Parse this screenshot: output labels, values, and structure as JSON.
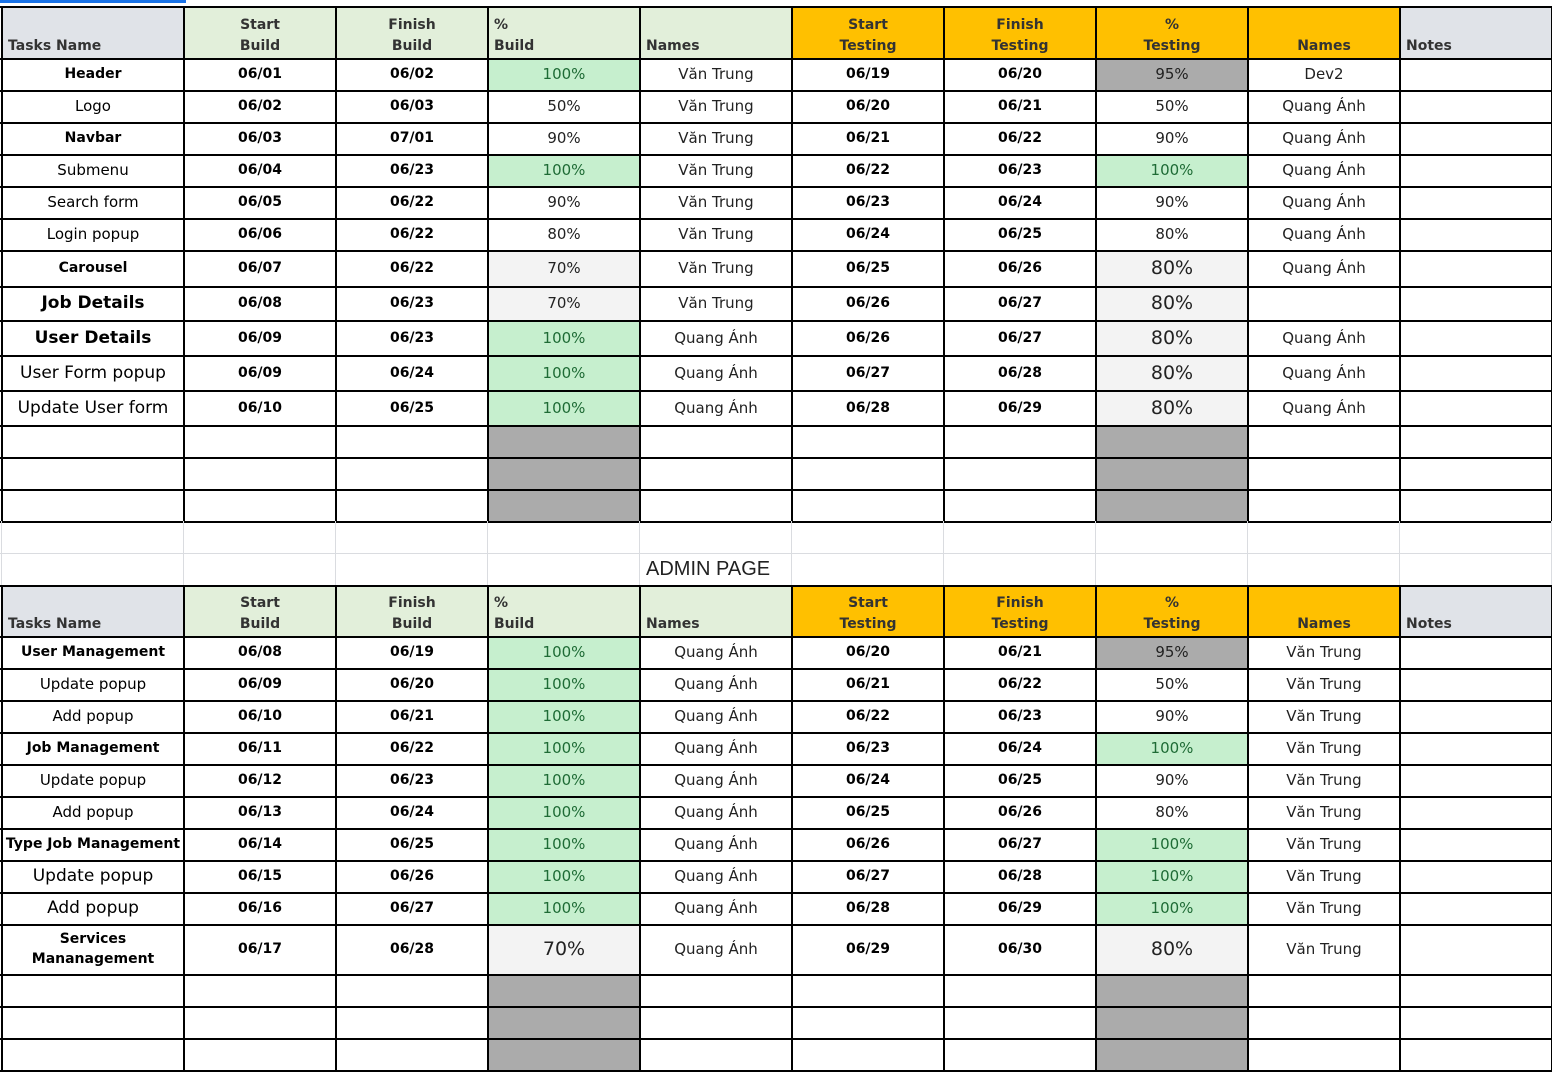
{
  "headers": {
    "task": "Tasks Name",
    "start_build": [
      "Start",
      "Build"
    ],
    "finish_build": [
      "Finish",
      "Build"
    ],
    "pct_build": [
      "%",
      "Build"
    ],
    "names_build": "Names",
    "start_testing": [
      "Start",
      "Testing"
    ],
    "finish_testing": [
      "Finish",
      "Testing"
    ],
    "pct_testing": [
      "%",
      "Testing"
    ],
    "names_testing": "Names",
    "notes": "Notes"
  },
  "colors": {
    "header_green": "#e2efda",
    "header_yellow": "#ffc000",
    "header_grey": "#e0e3e8",
    "pct_done_green": "#c6efce",
    "pct_dark_grey": "#ababab",
    "pct_light_grey": "#f3f3f3"
  },
  "user_section": {
    "rows": [
      {
        "task": "Header",
        "style": "bold",
        "start_build": "06/01",
        "finish_build": "06/02",
        "pct_build": "100%",
        "pct_build_style": "green",
        "names_build": "Văn Trung",
        "start_testing": "06/19",
        "finish_testing": "06/20",
        "pct_testing": "95%",
        "pct_testing_style": "darkgrey",
        "names_testing": "Dev2",
        "notes": ""
      },
      {
        "task": "Logo",
        "style": "normal",
        "start_build": "06/02",
        "finish_build": "06/03",
        "pct_build": "50%",
        "pct_build_style": "",
        "names_build": "Văn Trung",
        "start_testing": "06/20",
        "finish_testing": "06/21",
        "pct_testing": "50%",
        "pct_testing_style": "",
        "names_testing": "Quang Ánh",
        "notes": ""
      },
      {
        "task": "Navbar",
        "style": "bold",
        "start_build": "06/03",
        "finish_build": "07/01",
        "pct_build": "90%",
        "pct_build_style": "",
        "names_build": "Văn Trung",
        "start_testing": "06/21",
        "finish_testing": "06/22",
        "pct_testing": "90%",
        "pct_testing_style": "",
        "names_testing": "Quang Ánh",
        "notes": ""
      },
      {
        "task": "Submenu",
        "style": "normal",
        "start_build": "06/04",
        "finish_build": "06/23",
        "pct_build": "100%",
        "pct_build_style": "green",
        "names_build": "Văn Trung",
        "start_testing": "06/22",
        "finish_testing": "06/23",
        "pct_testing": "100%",
        "pct_testing_style": "green",
        "names_testing": "Quang Ánh",
        "notes": ""
      },
      {
        "task": "Search form",
        "style": "normal",
        "start_build": "06/05",
        "finish_build": "06/22",
        "pct_build": "90%",
        "pct_build_style": "",
        "names_build": "Văn Trung",
        "start_testing": "06/23",
        "finish_testing": "06/24",
        "pct_testing": "90%",
        "pct_testing_style": "",
        "names_testing": "Quang Ánh",
        "notes": ""
      },
      {
        "task": "Login popup",
        "style": "normal",
        "start_build": "06/06",
        "finish_build": "06/22",
        "pct_build": "80%",
        "pct_build_style": "",
        "names_build": "Văn Trung",
        "start_testing": "06/24",
        "finish_testing": "06/25",
        "pct_testing": "80%",
        "pct_testing_style": "",
        "names_testing": "Quang Ánh",
        "notes": ""
      },
      {
        "task": "Carousel",
        "style": "bold",
        "start_build": "06/07",
        "finish_build": "06/22",
        "pct_build": "70%",
        "pct_build_style": "lightgrey",
        "names_build": "Văn Trung",
        "start_testing": "06/25",
        "finish_testing": "06/26",
        "pct_testing": "80%",
        "pct_testing_style": "lightgrey big",
        "names_testing": "Quang Ánh",
        "notes": ""
      },
      {
        "task": "Job Details",
        "style": "bigbold",
        "start_build": "06/08",
        "finish_build": "06/23",
        "pct_build": "70%",
        "pct_build_style": "lightgrey",
        "names_build": "Văn Trung",
        "start_testing": "06/26",
        "finish_testing": "06/27",
        "pct_testing": "80%",
        "pct_testing_style": "lightgrey big",
        "names_testing": "",
        "notes": ""
      },
      {
        "task": "User Details",
        "style": "bigbold",
        "start_build": "06/09",
        "finish_build": "06/23",
        "pct_build": "100%",
        "pct_build_style": "green",
        "names_build": "Quang Ánh",
        "start_testing": "06/26",
        "finish_testing": "06/27",
        "pct_testing": "80%",
        "pct_testing_style": "lightgrey big",
        "names_testing": "Quang Ánh",
        "notes": ""
      },
      {
        "task": "User Form popup",
        "style": "big",
        "start_build": "06/09",
        "finish_build": "06/24",
        "pct_build": "100%",
        "pct_build_style": "green",
        "names_build": "Quang Ánh",
        "start_testing": "06/27",
        "finish_testing": "06/28",
        "pct_testing": "80%",
        "pct_testing_style": "lightgrey big",
        "names_testing": "Quang Ánh",
        "notes": ""
      },
      {
        "task": "Update User form",
        "style": "big",
        "start_build": "06/10",
        "finish_build": "06/25",
        "pct_build": "100%",
        "pct_build_style": "green",
        "names_build": "Quang Ánh",
        "start_testing": "06/28",
        "finish_testing": "06/29",
        "pct_testing": "80%",
        "pct_testing_style": "lightgrey big",
        "names_testing": "Quang Ánh",
        "notes": ""
      }
    ]
  },
  "admin_section": {
    "title": "ADMIN PAGE",
    "rows": [
      {
        "task": "User Management",
        "style": "bold",
        "start_build": "06/08",
        "finish_build": "06/19",
        "pct_build": "100%",
        "pct_build_style": "green",
        "names_build": "Quang Ánh",
        "start_testing": "06/20",
        "finish_testing": "06/21",
        "pct_testing": "95%",
        "pct_testing_style": "darkgrey",
        "names_testing": "Văn Trung",
        "notes": ""
      },
      {
        "task": "Update popup",
        "style": "normal",
        "start_build": "06/09",
        "finish_build": "06/20",
        "pct_build": "100%",
        "pct_build_style": "green",
        "names_build": "Quang Ánh",
        "start_testing": "06/21",
        "finish_testing": "06/22",
        "pct_testing": "50%",
        "pct_testing_style": "",
        "names_testing": "Văn Trung",
        "notes": ""
      },
      {
        "task": "Add popup",
        "style": "normal",
        "start_build": "06/10",
        "finish_build": "06/21",
        "pct_build": "100%",
        "pct_build_style": "green",
        "names_build": "Quang Ánh",
        "start_testing": "06/22",
        "finish_testing": "06/23",
        "pct_testing": "90%",
        "pct_testing_style": "",
        "names_testing": "Văn Trung",
        "notes": ""
      },
      {
        "task": "Job Management",
        "style": "bold",
        "start_build": "06/11",
        "finish_build": "06/22",
        "pct_build": "100%",
        "pct_build_style": "green",
        "names_build": "Quang Ánh",
        "start_testing": "06/23",
        "finish_testing": "06/24",
        "pct_testing": "100%",
        "pct_testing_style": "green",
        "names_testing": "Văn Trung",
        "notes": ""
      },
      {
        "task": "Update popup",
        "style": "normal",
        "start_build": "06/12",
        "finish_build": "06/23",
        "pct_build": "100%",
        "pct_build_style": "green",
        "names_build": "Quang Ánh",
        "start_testing": "06/24",
        "finish_testing": "06/25",
        "pct_testing": "90%",
        "pct_testing_style": "",
        "names_testing": "Văn Trung",
        "notes": ""
      },
      {
        "task": "Add popup",
        "style": "normal",
        "start_build": "06/13",
        "finish_build": "06/24",
        "pct_build": "100%",
        "pct_build_style": "green",
        "names_build": "Quang Ánh",
        "start_testing": "06/25",
        "finish_testing": "06/26",
        "pct_testing": "80%",
        "pct_testing_style": "",
        "names_testing": "Văn Trung",
        "notes": ""
      },
      {
        "task": "Type Job Management",
        "style": "bold",
        "start_build": "06/14",
        "finish_build": "06/25",
        "pct_build": "100%",
        "pct_build_style": "green",
        "names_build": "Quang Ánh",
        "start_testing": "06/26",
        "finish_testing": "06/27",
        "pct_testing": "100%",
        "pct_testing_style": "green",
        "names_testing": "Văn Trung",
        "notes": ""
      },
      {
        "task": "Update popup",
        "style": "big",
        "start_build": "06/15",
        "finish_build": "06/26",
        "pct_build": "100%",
        "pct_build_style": "green",
        "names_build": "Quang Ánh",
        "start_testing": "06/27",
        "finish_testing": "06/28",
        "pct_testing": "100%",
        "pct_testing_style": "green",
        "names_testing": "Văn Trung",
        "notes": ""
      },
      {
        "task": "Add popup",
        "style": "big",
        "start_build": "06/16",
        "finish_build": "06/27",
        "pct_build": "100%",
        "pct_build_style": "green",
        "names_build": "Quang Ánh",
        "start_testing": "06/28",
        "finish_testing": "06/29",
        "pct_testing": "100%",
        "pct_testing_style": "green",
        "names_testing": "Văn Trung",
        "notes": ""
      },
      {
        "task": "Services\nMananagement",
        "style": "bold",
        "start_build": "06/17",
        "finish_build": "06/28",
        "pct_build": "70%",
        "pct_build_style": "lightgrey big",
        "names_build": "Quang Ánh",
        "start_testing": "06/29",
        "finish_testing": "06/30",
        "pct_testing": "80%",
        "pct_testing_style": "lightgrey big",
        "names_testing": "Văn Trung",
        "notes": ""
      }
    ]
  }
}
